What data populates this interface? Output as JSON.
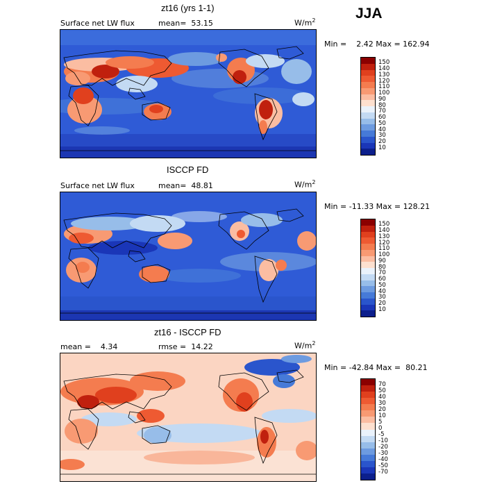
{
  "season": "JJA",
  "panels": [
    {
      "title": "zt16 (yrs 1-1)",
      "left_text": "Surface net LW flux",
      "mid_text": "mean=  53.15",
      "unit_base": "W/m",
      "unit_sup": "2",
      "minmax": "Min =    2.42 Max = 162.94",
      "levels": [
        "150",
        "140",
        "130",
        "120",
        "110",
        "100",
        "90",
        "80",
        "70",
        "60",
        "50",
        "40",
        "30",
        "20",
        "10"
      ],
      "colors": [
        "#8b0000",
        "#c0200e",
        "#e0401e",
        "#ee5a32",
        "#f47c4f",
        "#f89a73",
        "#fbbda2",
        "#fde0cf",
        "#eaf2fb",
        "#c3daf3",
        "#97bde9",
        "#6d9be0",
        "#467ad8",
        "#2a55cc",
        "#1a36b8",
        "#0c1f8c"
      ]
    },
    {
      "title": "ISCCP FD",
      "left_text": "Surface net LW flux",
      "mid_text": "mean=  48.81",
      "unit_base": "W/m",
      "unit_sup": "2",
      "minmax": "Min = -11.33 Max = 128.21",
      "levels": [
        "150",
        "140",
        "130",
        "120",
        "110",
        "100",
        "90",
        "80",
        "70",
        "60",
        "50",
        "40",
        "30",
        "20",
        "10"
      ],
      "colors": [
        "#8b0000",
        "#c0200e",
        "#e0401e",
        "#ee5a32",
        "#f47c4f",
        "#f89a73",
        "#fbbda2",
        "#fde0cf",
        "#eaf2fb",
        "#c3daf3",
        "#97bde9",
        "#6d9be0",
        "#467ad8",
        "#2a55cc",
        "#1a36b8",
        "#0c1f8c"
      ]
    },
    {
      "title": "zt16 - ISCCP FD",
      "left_text": "mean =    4.34",
      "mid_text": "rmse =  14.22",
      "unit_base": "W/m",
      "unit_sup": "2",
      "minmax": "Min = -42.84 Max =  80.21",
      "levels": [
        "70",
        "50",
        "40",
        "30",
        "20",
        "10",
        "5",
        "0",
        "-5",
        "-10",
        "-20",
        "-30",
        "-40",
        "-50",
        "-70"
      ],
      "colors": [
        "#8b0000",
        "#c0200e",
        "#e0401e",
        "#ee5a32",
        "#f47c4f",
        "#f89a73",
        "#fbbda2",
        "#fde0cf",
        "#eaf2fb",
        "#c3daf3",
        "#97bde9",
        "#6d9be0",
        "#467ad8",
        "#2a55cc",
        "#1a36b8",
        "#0c1f8c"
      ]
    }
  ]
}
